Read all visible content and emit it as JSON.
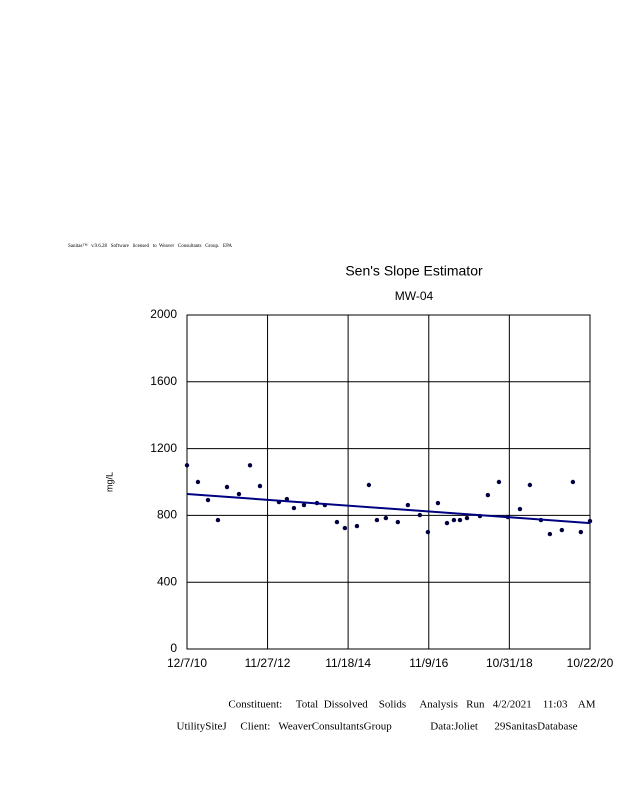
{
  "chart_data": {
    "type": "scatter",
    "header_note": "Sanitas™   v.9.6.28   Software   licensed   to  Weaver   Consultants   Group.   EPA",
    "title": "Sen's Slope Estimator",
    "subtitle": "MW-04",
    "ylabel": "mg/L",
    "footer": [
      "Constituent:     Total  Dissolved    Solids     Analysis   Run   4/2/2021    11:03    AM",
      "UtilitySiteJ     Client:   WeaverConsultantsGroup              Data:Joliet      29SanitasDatabase"
    ],
    "x": [
      "2010-12-07",
      "2011-03-15",
      "2011-06-13",
      "2011-09-10",
      "2011-11-30",
      "2012-03-16",
      "2012-06-23",
      "2012-09-20",
      "2013-03-09",
      "2013-05-19",
      "2013-07-21",
      "2013-10-19",
      "2014-02-12",
      "2014-04-24",
      "2014-08-10",
      "2014-10-20",
      "2015-02-05",
      "2015-05-23",
      "2015-08-03",
      "2015-10-22",
      "2016-02-06",
      "2016-05-06",
      "2016-08-21",
      "2016-11-01",
      "2017-01-30",
      "2017-04-21",
      "2017-06-22",
      "2017-08-15",
      "2017-10-17",
      "2018-02-10",
      "2018-04-22",
      "2018-07-30",
      "2018-10-18",
      "2019-02-03",
      "2019-05-03",
      "2019-08-10",
      "2019-10-29",
      "2020-02-13",
      "2020-05-22",
      "2020-08-01",
      "2020-10-22"
    ],
    "values": [
      1100,
      1000,
      892,
      772,
      970,
      928,
      1100,
      976,
      880,
      898,
      844,
      862,
      874,
      862,
      760,
      724,
      736,
      982,
      772,
      784,
      760,
      862,
      802,
      700,
      874,
      754,
      772,
      772,
      784,
      796,
      922,
      1000,
      790,
      838,
      982,
      772,
      688,
      712,
      1000,
      700,
      766
    ],
    "color": "#000040",
    "trend": {
      "x": [
        "2010-12-07",
        "2020-10-22"
      ],
      "values": [
        928,
        754
      ],
      "color": "#000080"
    },
    "xlim": [
      "2010-12-07",
      "2020-10-22"
    ],
    "xticks": [
      {
        "value": "2010-12-07",
        "label": "12/7/10"
      },
      {
        "value": "2012-11-27",
        "label": "11/27/12"
      },
      {
        "value": "2014-11-18",
        "label": "11/18/14"
      },
      {
        "value": "2016-11-09",
        "label": "11/9/16"
      },
      {
        "value": "2018-10-31",
        "label": "10/31/18"
      },
      {
        "value": "2020-10-22",
        "label": "10/22/20"
      }
    ],
    "ylim": [
      0,
      2000
    ],
    "yticks": [
      0,
      400,
      800,
      1200,
      1600,
      2000
    ],
    "grid": true
  }
}
